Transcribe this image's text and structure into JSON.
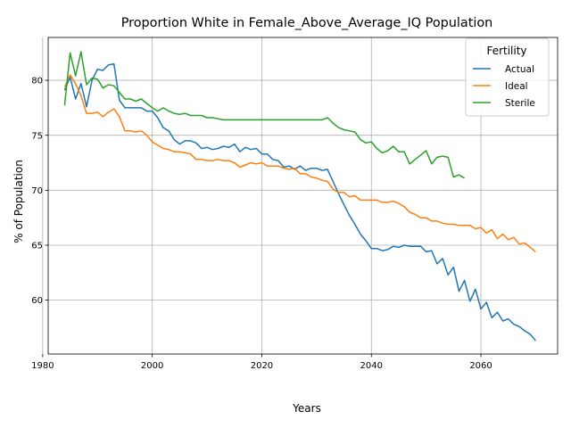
{
  "chart_data": {
    "type": "line",
    "title": "Proportion White in Female_Above_Average_IQ Population",
    "xlabel": "Years",
    "ylabel": "% of Population",
    "xlim": [
      1981,
      2074
    ],
    "ylim": [
      55.1,
      83.9
    ],
    "xticks": [
      1980,
      2000,
      2020,
      2040,
      2060
    ],
    "yticks": [
      60,
      65,
      70,
      75,
      80
    ],
    "grid": true,
    "legend": {
      "title": "Fertility",
      "placement": "top-right"
    },
    "series": [
      {
        "name": "Actual",
        "color": "#1f77b4",
        "x": [
          1984,
          1985,
          1986,
          1987,
          1988,
          1989,
          1990,
          1991,
          1992,
          1993,
          1994,
          1995,
          1996,
          1997,
          1998,
          1999,
          2000,
          2001,
          2002,
          2003,
          2004,
          2005,
          2006,
          2007,
          2008,
          2009,
          2010,
          2011,
          2012,
          2013,
          2014,
          2015,
          2016,
          2017,
          2018,
          2019,
          2020,
          2021,
          2022,
          2023,
          2024,
          2025,
          2026,
          2027,
          2028,
          2029,
          2030,
          2031,
          2032,
          2033,
          2034,
          2035,
          2036,
          2037,
          2038,
          2039,
          2040,
          2041,
          2042,
          2043,
          2044,
          2045,
          2046,
          2047,
          2048,
          2049,
          2050,
          2051,
          2052,
          2053,
          2054,
          2055,
          2056,
          2057,
          2058,
          2059,
          2060,
          2061,
          2062,
          2063,
          2064,
          2065,
          2066,
          2067,
          2068,
          2069,
          2070
        ],
        "y": [
          79.1,
          80.3,
          78.3,
          79.7,
          77.6,
          80.0,
          81.0,
          80.9,
          81.4,
          81.5,
          78.2,
          77.5,
          77.5,
          77.5,
          77.5,
          77.2,
          77.2,
          76.6,
          75.7,
          75.4,
          74.6,
          74.2,
          74.5,
          74.5,
          74.3,
          73.8,
          73.9,
          73.7,
          73.8,
          74.0,
          73.9,
          74.2,
          73.5,
          73.9,
          73.7,
          73.8,
          73.3,
          73.3,
          72.8,
          72.7,
          72.1,
          72.2,
          71.9,
          72.2,
          71.8,
          72.0,
          72.0,
          71.8,
          71.9,
          70.8,
          69.7,
          68.7,
          67.7,
          66.9,
          66.0,
          65.4,
          64.7,
          64.7,
          64.5,
          64.6,
          64.9,
          64.8,
          65.0,
          64.9,
          64.9,
          64.9,
          64.4,
          64.5,
          63.3,
          63.8,
          62.3,
          63.0,
          60.8,
          61.8,
          59.9,
          61.0,
          59.2,
          59.8,
          58.4,
          58.9,
          58.1,
          58.3,
          57.8,
          57.6,
          57.2,
          56.9,
          56.3
        ]
      },
      {
        "name": "Ideal",
        "color": "#ff7f0e",
        "x": [
          1984,
          1985,
          1986,
          1987,
          1988,
          1989,
          1990,
          1991,
          1992,
          1993,
          1994,
          1995,
          1996,
          1997,
          1998,
          1999,
          2000,
          2001,
          2002,
          2003,
          2004,
          2005,
          2006,
          2007,
          2008,
          2009,
          2010,
          2011,
          2012,
          2013,
          2014,
          2015,
          2016,
          2017,
          2018,
          2019,
          2020,
          2021,
          2022,
          2023,
          2024,
          2025,
          2026,
          2027,
          2028,
          2029,
          2030,
          2031,
          2032,
          2033,
          2034,
          2035,
          2036,
          2037,
          2038,
          2039,
          2040,
          2041,
          2042,
          2043,
          2044,
          2045,
          2046,
          2047,
          2048,
          2049,
          2050,
          2051,
          2052,
          2053,
          2054,
          2055,
          2056,
          2057,
          2058,
          2059,
          2060,
          2061,
          2062,
          2063,
          2064,
          2065,
          2066,
          2067,
          2068,
          2069,
          2070
        ],
        "y": [
          79.4,
          80.5,
          79.7,
          78.6,
          77.0,
          77.0,
          77.1,
          76.7,
          77.1,
          77.4,
          76.7,
          75.4,
          75.4,
          75.3,
          75.4,
          75.0,
          74.4,
          74.1,
          73.8,
          73.7,
          73.5,
          73.5,
          73.4,
          73.3,
          72.8,
          72.8,
          72.7,
          72.7,
          72.8,
          72.7,
          72.7,
          72.5,
          72.1,
          72.3,
          72.5,
          72.4,
          72.5,
          72.2,
          72.2,
          72.2,
          72.0,
          71.9,
          72.0,
          71.5,
          71.5,
          71.2,
          71.1,
          70.9,
          70.8,
          70.1,
          69.8,
          69.8,
          69.4,
          69.5,
          69.1,
          69.1,
          69.1,
          69.1,
          68.9,
          68.9,
          69.0,
          68.8,
          68.5,
          68.0,
          67.8,
          67.5,
          67.5,
          67.2,
          67.2,
          67.0,
          66.9,
          66.9,
          66.8,
          66.8,
          66.8,
          66.5,
          66.6,
          66.1,
          66.4,
          65.6,
          66.0,
          65.5,
          65.7,
          65.1,
          65.2,
          64.8,
          64.4
        ]
      },
      {
        "name": "Sterile",
        "color": "#2ca02c",
        "x": [
          1984,
          1985,
          1986,
          1987,
          1988,
          1989,
          1990,
          1991,
          1992,
          1993,
          1994,
          1995,
          1996,
          1997,
          1998,
          1999,
          2000,
          2001,
          2002,
          2003,
          2004,
          2005,
          2006,
          2007,
          2008,
          2009,
          2010,
          2011,
          2012,
          2013,
          2014,
          2015,
          2016,
          2017,
          2018,
          2019,
          2020,
          2021,
          2022,
          2023,
          2024,
          2025,
          2026,
          2027,
          2028,
          2029,
          2030,
          2031,
          2032,
          2033,
          2034,
          2035,
          2036,
          2037,
          2038,
          2039,
          2040,
          2041,
          2042,
          2043,
          2044,
          2045,
          2046,
          2047,
          2048,
          2049,
          2050,
          2051,
          2052,
          2053,
          2054,
          2055,
          2056,
          2057
        ],
        "y": [
          77.7,
          82.5,
          80.4,
          82.6,
          79.6,
          80.2,
          80.1,
          79.3,
          79.6,
          79.5,
          78.9,
          78.3,
          78.3,
          78.1,
          78.3,
          77.9,
          77.5,
          77.2,
          77.5,
          77.2,
          77.0,
          76.9,
          77.0,
          76.8,
          76.8,
          76.8,
          76.6,
          76.6,
          76.5,
          76.4,
          76.4,
          76.4,
          76.4,
          76.4,
          76.4,
          76.4,
          76.4,
          76.4,
          76.4,
          76.4,
          76.4,
          76.4,
          76.4,
          76.4,
          76.4,
          76.4,
          76.4,
          76.4,
          76.6,
          76.1,
          75.7,
          75.5,
          75.4,
          75.3,
          74.6,
          74.3,
          74.4,
          73.8,
          73.4,
          73.6,
          74.0,
          73.5,
          73.5,
          72.4,
          72.8,
          73.2,
          73.6,
          72.4,
          73.0,
          73.1,
          73.0,
          71.2,
          71.4,
          71.1
        ]
      }
    ]
  }
}
